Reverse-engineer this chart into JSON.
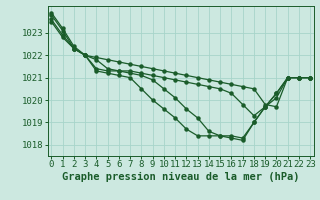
{
  "background_color": "#cce8e0",
  "grid_color": "#a8d4ca",
  "line_color": "#1a5c2a",
  "text_color": "#1a5c2a",
  "xlabel": "Graphe pression niveau de la mer (hPa)",
  "xlabel_fontsize": 7.5,
  "tick_fontsize": 6.5,
  "ylim": [
    1017.5,
    1024.2
  ],
  "xlim": [
    -0.3,
    23.3
  ],
  "yticks": [
    1018,
    1019,
    1020,
    1021,
    1022,
    1023
  ],
  "xticks": [
    0,
    1,
    2,
    3,
    4,
    5,
    6,
    7,
    8,
    9,
    10,
    11,
    12,
    13,
    14,
    15,
    16,
    17,
    18,
    19,
    20,
    21,
    22,
    23
  ],
  "series": [
    [
      1023.9,
      1023.2,
      1022.4,
      1022.0,
      1021.9,
      1021.8,
      1021.7,
      1021.6,
      1021.5,
      1021.4,
      1021.3,
      1021.2,
      1021.1,
      1021.0,
      1020.9,
      1020.8,
      1020.7,
      1020.6,
      1020.5,
      1019.8,
      1019.7,
      1021.0,
      1021.0,
      1021.0
    ],
    [
      1023.6,
      1022.9,
      1022.3,
      1022.0,
      1021.8,
      1021.4,
      1021.3,
      1021.3,
      1021.2,
      1021.1,
      1021.0,
      1020.9,
      1020.8,
      1020.7,
      1020.6,
      1020.5,
      1020.3,
      1019.8,
      1019.3,
      1019.7,
      1020.1,
      1021.0,
      1021.0,
      1021.0
    ],
    [
      1023.8,
      1023.1,
      1022.3,
      1022.0,
      1021.4,
      1021.3,
      1021.3,
      1021.2,
      1021.1,
      1020.9,
      1020.5,
      1020.1,
      1019.6,
      1019.2,
      1018.6,
      1018.4,
      1018.4,
      1018.3,
      1019.0,
      1019.7,
      1020.3,
      1021.0,
      1021.0,
      1021.0
    ],
    [
      1023.5,
      1022.8,
      1022.3,
      1022.0,
      1021.3,
      1021.2,
      1021.1,
      1021.0,
      1020.5,
      1020.0,
      1019.6,
      1019.2,
      1018.7,
      1018.4,
      1018.4,
      1018.4,
      1018.3,
      1018.2,
      1019.0,
      1019.7,
      1020.3,
      1021.0,
      1021.0,
      1021.0
    ]
  ],
  "marker": "o",
  "markersize": 2.2,
  "linewidth": 0.9
}
